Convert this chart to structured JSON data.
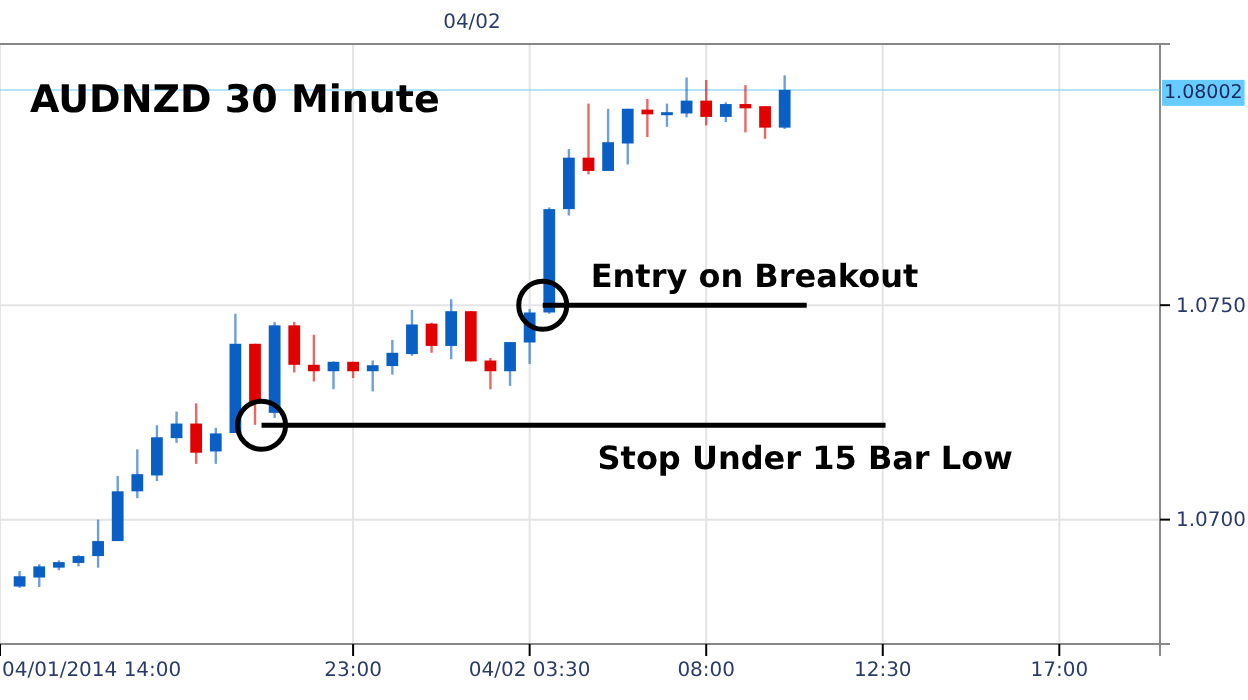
{
  "chart_data": {
    "type": "candlestick",
    "title": "AUDNZD 30 Minute",
    "x": [
      "2014-04-01T14:30",
      "2014-04-01T15:00",
      "2014-04-01T15:30",
      "2014-04-01T16:00",
      "2014-04-01T16:30",
      "2014-04-01T17:00",
      "2014-04-01T17:30",
      "2014-04-01T18:00",
      "2014-04-01T18:30",
      "2014-04-01T19:00",
      "2014-04-01T19:30",
      "2014-04-01T20:00",
      "2014-04-01T20:30",
      "2014-04-01T21:00",
      "2014-04-01T21:30",
      "2014-04-01T22:00",
      "2014-04-01T22:30",
      "2014-04-01T23:00",
      "2014-04-01T23:30",
      "2014-04-02T00:00",
      "2014-04-02T00:30",
      "2014-04-02T01:00",
      "2014-04-02T01:30",
      "2014-04-02T02:00",
      "2014-04-02T02:30",
      "2014-04-02T03:00",
      "2014-04-02T03:30",
      "2014-04-02T04:00",
      "2014-04-02T04:30",
      "2014-04-02T05:00",
      "2014-04-02T05:30",
      "2014-04-02T06:00",
      "2014-04-02T06:30",
      "2014-04-02T07:00",
      "2014-04-02T07:30",
      "2014-04-02T08:00",
      "2014-04-02T08:30",
      "2014-04-02T09:00",
      "2014-04-02T09:30",
      "2014-04-02T10:00"
    ],
    "ohlc": [
      [
        1.06844,
        1.0688,
        1.06841,
        1.06868
      ],
      [
        1.06865,
        1.06896,
        1.06843,
        1.06891
      ],
      [
        1.06888,
        1.06905,
        1.06882,
        1.06901
      ],
      [
        1.06899,
        1.06917,
        1.06891,
        1.06915
      ],
      [
        1.06915,
        1.07,
        1.06888,
        1.0695
      ],
      [
        1.0695,
        1.07102,
        1.0695,
        1.07066
      ],
      [
        1.07066,
        1.07164,
        1.0705,
        1.07106
      ],
      [
        1.07103,
        1.0722,
        1.0709,
        1.07192
      ],
      [
        1.0719,
        1.07252,
        1.07179,
        1.07224
      ],
      [
        1.07224,
        1.07271,
        1.0713,
        1.07156
      ],
      [
        1.07159,
        1.07214,
        1.0713,
        1.07201
      ],
      [
        1.07202,
        1.0748,
        1.07202,
        1.0741
      ],
      [
        1.0741,
        1.0741,
        1.07221,
        1.07272
      ],
      [
        1.07249,
        1.07461,
        1.07237,
        1.07453
      ],
      [
        1.07453,
        1.07461,
        1.07343,
        1.07361
      ],
      [
        1.07361,
        1.07431,
        1.07322,
        1.07346
      ],
      [
        1.07346,
        1.07369,
        1.07304,
        1.07368
      ],
      [
        1.07368,
        1.07368,
        1.0733,
        1.07346
      ],
      [
        1.07346,
        1.07371,
        1.07299,
        1.0736
      ],
      [
        1.07358,
        1.07419,
        1.07338,
        1.07389
      ],
      [
        1.07386,
        1.07489,
        1.07382,
        1.07455
      ],
      [
        1.07457,
        1.07459,
        1.07389,
        1.07405
      ],
      [
        1.07405,
        1.07514,
        1.07374,
        1.07486
      ],
      [
        1.07486,
        1.07486,
        1.07369,
        1.07369
      ],
      [
        1.07371,
        1.07377,
        1.07304,
        1.07346
      ],
      [
        1.07346,
        1.07414,
        1.07312,
        1.07414
      ],
      [
        1.07413,
        1.07491,
        1.07363,
        1.07483
      ],
      [
        1.07483,
        1.07728,
        1.0748,
        1.07724
      ],
      [
        1.07724,
        1.07864,
        1.07709,
        1.07844
      ],
      [
        1.07844,
        1.0797,
        1.07805,
        1.07813
      ],
      [
        1.07813,
        1.07958,
        1.07813,
        1.0788
      ],
      [
        1.07877,
        1.07958,
        1.07828,
        1.07958
      ],
      [
        1.07956,
        1.07981,
        1.07892,
        1.07945
      ],
      [
        1.07945,
        1.0797,
        1.07916,
        1.0795
      ],
      [
        1.07947,
        1.08031,
        1.07938,
        1.07977
      ],
      [
        1.07977,
        1.08025,
        1.07919,
        1.07939
      ],
      [
        1.07939,
        1.07973,
        1.07927,
        1.07969
      ],
      [
        1.07969,
        1.08013,
        1.07903,
        1.07959
      ],
      [
        1.07964,
        1.07964,
        1.07888,
        1.07914
      ],
      [
        1.07914,
        1.08036,
        1.07911,
        1.08002
      ]
    ],
    "colors": [
      "#0a5fc4",
      "#0a5fc4",
      "#0a5fc4",
      "#0a5fc4",
      "#0a5fc4",
      "#0a5fc4",
      "#0a5fc4",
      "#0a5fc4",
      "#0a5fc4",
      "#e00000",
      "#0a5fc4",
      "#0a5fc4",
      "#e00000",
      "#0a5fc4",
      "#e00000",
      "#e00000",
      "#0a5fc4",
      "#e00000",
      "#0a5fc4",
      "#0a5fc4",
      "#0a5fc4",
      "#e00000",
      "#0a5fc4",
      "#e00000",
      "#e00000",
      "#0a5fc4",
      "#0a5fc4",
      "#0a5fc4",
      "#0a5fc4",
      "#e00000",
      "#0a5fc4",
      "#0a5fc4",
      "#e00000",
      "#0a5fc4",
      "#0a5fc4",
      "#e00000",
      "#0a5fc4",
      "#e00000",
      "#e00000",
      "#0a5fc4"
    ],
    "xlim": [
      "2014-04-01T14:00",
      "2014-04-02T19:34"
    ],
    "xticks": [
      {
        "value": "2014-04-01T14:00",
        "label": "04/01/2014 14:00"
      },
      {
        "value": "2014-04-01T23:00",
        "label": "23:00"
      },
      {
        "value": "2014-04-02T03:30",
        "label": "04/02 03:30"
      },
      {
        "value": "2014-04-02T08:00",
        "label": "08:00"
      },
      {
        "value": "2014-04-02T12:30",
        "label": "12:30"
      },
      {
        "value": "2014-04-02T17:00",
        "label": "17:00"
      }
    ],
    "ylim": [
      1.0671,
      1.08109
    ],
    "yticks": [
      {
        "value": 1.07,
        "label": "1.0700"
      },
      {
        "value": 1.075,
        "label": "1.0750"
      }
    ],
    "grid": true,
    "ref_lines": [
      {
        "axis": "y",
        "value": 1.08002,
        "label": "1.08002",
        "color": "#66ccff"
      }
    ],
    "annotations": [
      {
        "text": "Entry on Breakout",
        "x": "2014-04-02T03:50",
        "y": 1.075
      },
      {
        "text": "Stop Under 15 Bar Low",
        "x": "2014-04-01T20:40",
        "y": 1.0722
      },
      "04/02"
    ]
  }
}
